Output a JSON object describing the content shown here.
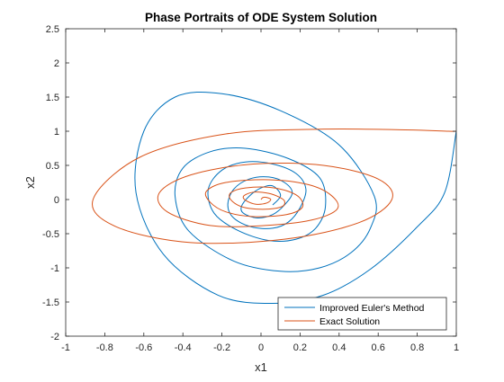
{
  "chart_data": {
    "type": "line",
    "title": "Phase Portraits of ODE System   Solution",
    "xlabel": "x1",
    "ylabel": "x2",
    "xlim": [
      -1,
      1
    ],
    "ylim": [
      -2,
      2.5
    ],
    "xticks": [
      "-1",
      "-0.8",
      "-0.6",
      "-0.4",
      "-0.2",
      "0",
      "0.2",
      "0.4",
      "0.6",
      "0.8",
      "1"
    ],
    "yticks": [
      "-2",
      "-1.5",
      "-1",
      "-0.5",
      "0",
      "0.5",
      "1",
      "1.5",
      "2",
      "2.5"
    ],
    "grid": false,
    "legend": "bottom-right",
    "series": [
      {
        "name": "Improved Euler's Method",
        "color": "#0072BD",
        "x": [
          0.06,
          0.1,
          0.06,
          0.0,
          -0.06,
          -0.1,
          -0.09,
          -0.02,
          0.06,
          0.12,
          0.16,
          0.12,
          0.04,
          -0.06,
          -0.14,
          -0.17,
          -0.14,
          -0.05,
          0.06,
          0.14,
          0.2,
          0.23,
          0.18,
          0.06,
          -0.08,
          -0.2,
          -0.27,
          -0.24,
          -0.12,
          0.04,
          0.18,
          0.28,
          0.33,
          0.3,
          0.14,
          -0.08,
          -0.26,
          -0.4,
          -0.44,
          -0.37,
          -0.14,
          0.1,
          0.3,
          0.46,
          0.56,
          0.58,
          0.4,
          0.1,
          -0.2,
          -0.44,
          -0.6,
          -0.64,
          -0.5,
          -0.22,
          0.06,
          0.32,
          0.56,
          0.8,
          0.94,
          1.0
        ],
        "y": [
          -0.08,
          0.06,
          0.2,
          0.17,
          0.05,
          -0.1,
          -0.2,
          -0.27,
          -0.22,
          -0.08,
          0.1,
          0.25,
          0.33,
          0.3,
          0.15,
          -0.08,
          -0.27,
          -0.4,
          -0.42,
          -0.33,
          -0.12,
          0.15,
          0.38,
          0.52,
          0.55,
          0.43,
          0.15,
          -0.2,
          -0.45,
          -0.6,
          -0.58,
          -0.42,
          -0.1,
          0.32,
          0.6,
          0.75,
          0.7,
          0.46,
          0.05,
          -0.46,
          -0.9,
          -1.05,
          -1.0,
          -0.78,
          -0.42,
          0.05,
          0.8,
          1.3,
          1.55,
          1.5,
          1.0,
          0.1,
          -0.8,
          -1.4,
          -1.52,
          -1.4,
          -1.02,
          -0.4,
          0.1,
          1.0
        ]
      },
      {
        "name": "Exact Solution",
        "color": "#D95319",
        "x": [
          0.0,
          0.01,
          0.03,
          0.05,
          0.03,
          -0.02,
          -0.06,
          -0.09,
          -0.08,
          -0.03,
          0.04,
          0.09,
          0.12,
          0.11,
          0.04,
          -0.06,
          -0.12,
          -0.16,
          -0.15,
          -0.08,
          0.04,
          0.14,
          0.2,
          0.21,
          0.13,
          -0.04,
          -0.18,
          -0.26,
          -0.28,
          -0.18,
          0.04,
          0.24,
          0.36,
          0.39,
          0.26,
          0.02,
          -0.26,
          -0.48,
          -0.52,
          -0.36,
          -0.04,
          0.32,
          0.6,
          0.67,
          0.5,
          0.12,
          -0.36,
          -0.74,
          -0.86,
          -0.62,
          -0.18,
          0.3,
          0.74,
          0.96,
          1.0
        ],
        "y": [
          0.0,
          0.03,
          0.03,
          0.0,
          -0.05,
          -0.07,
          -0.04,
          0.02,
          0.07,
          0.11,
          0.09,
          0.04,
          -0.02,
          -0.1,
          -0.14,
          -0.13,
          -0.08,
          0.02,
          0.11,
          0.17,
          0.18,
          0.12,
          0.02,
          -0.12,
          -0.22,
          -0.25,
          -0.18,
          -0.04,
          0.12,
          0.25,
          0.29,
          0.22,
          0.06,
          -0.14,
          -0.3,
          -0.38,
          -0.38,
          -0.18,
          0.1,
          0.36,
          0.52,
          0.5,
          0.3,
          0.0,
          -0.34,
          -0.58,
          -0.63,
          -0.4,
          0.0,
          0.62,
          0.96,
          1.03,
          1.02,
          1.0,
          1.0
        ]
      }
    ]
  }
}
